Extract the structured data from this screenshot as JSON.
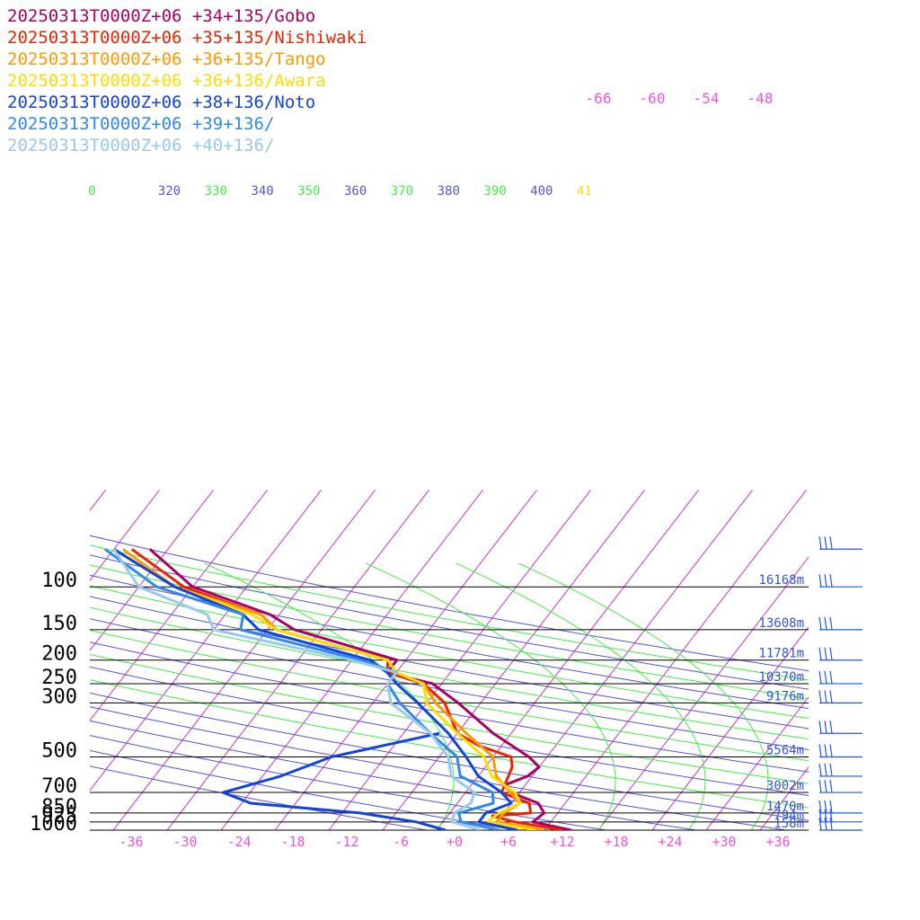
{
  "legend": [
    {
      "label": "20250313T0000Z+06 +34+135/Gobo",
      "color": "#aa0066"
    },
    {
      "label": "20250313T0000Z+06 +35+135/Nishiwaki",
      "color": "#ee2200"
    },
    {
      "label": "20250313T0000Z+06 +36+135/Tango",
      "color": "#ff9900"
    },
    {
      "label": "20250313T0000Z+06 +36+136/Awara",
      "color": "#ffdd00"
    },
    {
      "label": "20250313T0000Z+06 +38+136/Noto",
      "color": "#1144dd"
    },
    {
      "label": "20250313T0000Z+06 +39+136/",
      "color": "#3388ee"
    },
    {
      "label": "20250313T0000Z+06 +40+136/",
      "color": "#99c8f0"
    }
  ],
  "chart_data": {
    "type": "line",
    "diagram": "skew-T log-P",
    "pressure_levels": [
      "100",
      "150",
      "200",
      "250",
      "300",
      "500",
      "700",
      "850",
      "925",
      "1000"
    ],
    "heights": [
      "16168m",
      "13608m",
      "11781m",
      "10370m",
      "9176m",
      "5564m",
      "3002m",
      "1470m",
      "794m",
      "158m"
    ],
    "x_ticks": [
      "-36",
      "-30",
      "-24",
      "-18",
      "-12",
      "-6",
      "+0",
      "+6",
      "+12",
      "+18",
      "+24",
      "+30",
      "+36"
    ],
    "theta_labels": [
      {
        "text": "0",
        "color": "#44ee44"
      },
      {
        "text": "320",
        "color": "#5555dd"
      },
      {
        "text": "330",
        "color": "#44ee44"
      },
      {
        "text": "340",
        "color": "#5555dd"
      },
      {
        "text": "350",
        "color": "#44ee44"
      },
      {
        "text": "360",
        "color": "#5555dd"
      },
      {
        "text": "370",
        "color": "#44ee44"
      },
      {
        "text": "380",
        "color": "#5555dd"
      },
      {
        "text": "390",
        "color": "#44ee44"
      },
      {
        "text": "400",
        "color": "#5555dd"
      },
      {
        "text": "41",
        "color": "#ffdd00"
      }
    ],
    "mixing_labels": [
      "-66",
      "-60",
      "-54",
      "-48"
    ],
    "colors": {
      "isobar": "#000000",
      "isotherm": "#cc33cc",
      "dry_adiabat": "#5555dd",
      "moist_adiabat": "#44ee44",
      "barb": "#2255ee"
    },
    "series": [
      {
        "name": "Gobo",
        "color": "#aa0066",
        "points": [
          [
            1000,
            13
          ],
          [
            925,
            8
          ],
          [
            850,
            8.5
          ],
          [
            775,
            7
          ],
          [
            700,
            3
          ],
          [
            650,
            1.8
          ],
          [
            600,
            3.5
          ],
          [
            550,
            4
          ],
          [
            500,
            2
          ],
          [
            400,
            -4
          ],
          [
            300,
            -10.5
          ],
          [
            250,
            -15
          ],
          [
            225,
            -21
          ],
          [
            200,
            -21
          ],
          [
            150,
            -35
          ],
          [
            130,
            -39
          ],
          [
            100,
            -50
          ],
          [
            70,
            -58
          ]
        ]
      },
      {
        "name": "Nishiwaki",
        "color": "#ee2200",
        "points": [
          [
            1000,
            12
          ],
          [
            925,
            6
          ],
          [
            875,
            3
          ],
          [
            850,
            7
          ],
          [
            775,
            6
          ],
          [
            700,
            2
          ],
          [
            550,
            1
          ],
          [
            500,
            0
          ],
          [
            450,
            -4.5
          ],
          [
            400,
            -8
          ],
          [
            300,
            -12
          ],
          [
            250,
            -16
          ],
          [
            225,
            -21
          ],
          [
            200,
            -22
          ],
          [
            150,
            -37
          ],
          [
            130,
            -40
          ],
          [
            100,
            -51
          ],
          [
            70,
            -60
          ]
        ]
      },
      {
        "name": "Tango",
        "color": "#ff9900",
        "points": [
          [
            1000,
            10
          ],
          [
            925,
            4
          ],
          [
            850,
            4
          ],
          [
            775,
            5
          ],
          [
            700,
            3
          ],
          [
            600,
            0
          ],
          [
            500,
            -2
          ],
          [
            400,
            -7
          ],
          [
            300,
            -13
          ],
          [
            250,
            -16
          ],
          [
            225,
            -20
          ],
          [
            200,
            -22
          ],
          [
            150,
            -37
          ],
          [
            130,
            -40
          ],
          [
            100,
            -52
          ],
          [
            70,
            -61
          ]
        ]
      },
      {
        "name": "Awara",
        "color": "#ffdd00",
        "points": [
          [
            1000,
            9
          ],
          [
            925,
            3
          ],
          [
            850,
            3.5
          ],
          [
            775,
            5
          ],
          [
            700,
            3.5
          ],
          [
            600,
            -0.5
          ],
          [
            500,
            -3
          ],
          [
            400,
            -8
          ],
          [
            300,
            -14
          ],
          [
            250,
            -16
          ],
          [
            225,
            -20
          ],
          [
            200,
            -22
          ],
          [
            150,
            -37
          ],
          [
            130,
            -41
          ],
          [
            100,
            -52
          ],
          [
            70,
            -62
          ]
        ]
      },
      {
        "name": "Noto",
        "color": "#1144dd",
        "points": [
          [
            1000,
            7
          ],
          [
            925,
            2
          ],
          [
            850,
            2
          ],
          [
            775,
            4
          ],
          [
            700,
            2
          ],
          [
            600,
            -2
          ],
          [
            500,
            -5
          ],
          [
            400,
            -9
          ],
          [
            300,
            -15
          ],
          [
            250,
            -19
          ],
          [
            225,
            -21
          ],
          [
            200,
            -24
          ],
          [
            150,
            -39
          ],
          [
            130,
            -42
          ],
          [
            100,
            -52
          ],
          [
            70,
            -62
          ]
        ]
      },
      {
        "name": "Noto_dew",
        "color": "#1144dd",
        "points": [
          [
            1000,
            -1
          ],
          [
            925,
            -5
          ],
          [
            850,
            -12
          ],
          [
            775,
            -25
          ],
          [
            700,
            -29
          ],
          [
            600,
            -24
          ],
          [
            500,
            -20
          ],
          [
            400,
            -10
          ]
        ]
      },
      {
        "name": "39+136",
        "color": "#3388ee",
        "points": [
          [
            1000,
            5
          ],
          [
            925,
            0
          ],
          [
            850,
            -1
          ],
          [
            775,
            2
          ],
          [
            700,
            1
          ],
          [
            600,
            -4
          ],
          [
            500,
            -6
          ],
          [
            400,
            -11
          ],
          [
            300,
            -17
          ],
          [
            250,
            -20
          ],
          [
            225,
            -20
          ],
          [
            200,
            -25
          ],
          [
            150,
            -41
          ],
          [
            130,
            -42
          ],
          [
            100,
            -54
          ],
          [
            70,
            -63
          ]
        ]
      },
      {
        "name": "40+136",
        "color": "#99c8f0",
        "points": [
          [
            1000,
            3
          ],
          [
            925,
            -1
          ],
          [
            850,
            -1.5
          ],
          [
            775,
            -0.5
          ],
          [
            700,
            -1
          ],
          [
            600,
            -5
          ],
          [
            500,
            -7
          ],
          [
            400,
            -11
          ],
          [
            300,
            -18
          ],
          [
            250,
            -20
          ],
          [
            225,
            -20
          ],
          [
            200,
            -26
          ],
          [
            150,
            -44
          ],
          [
            130,
            -46
          ],
          [
            100,
            -56
          ],
          [
            70,
            -62
          ]
        ]
      }
    ]
  }
}
